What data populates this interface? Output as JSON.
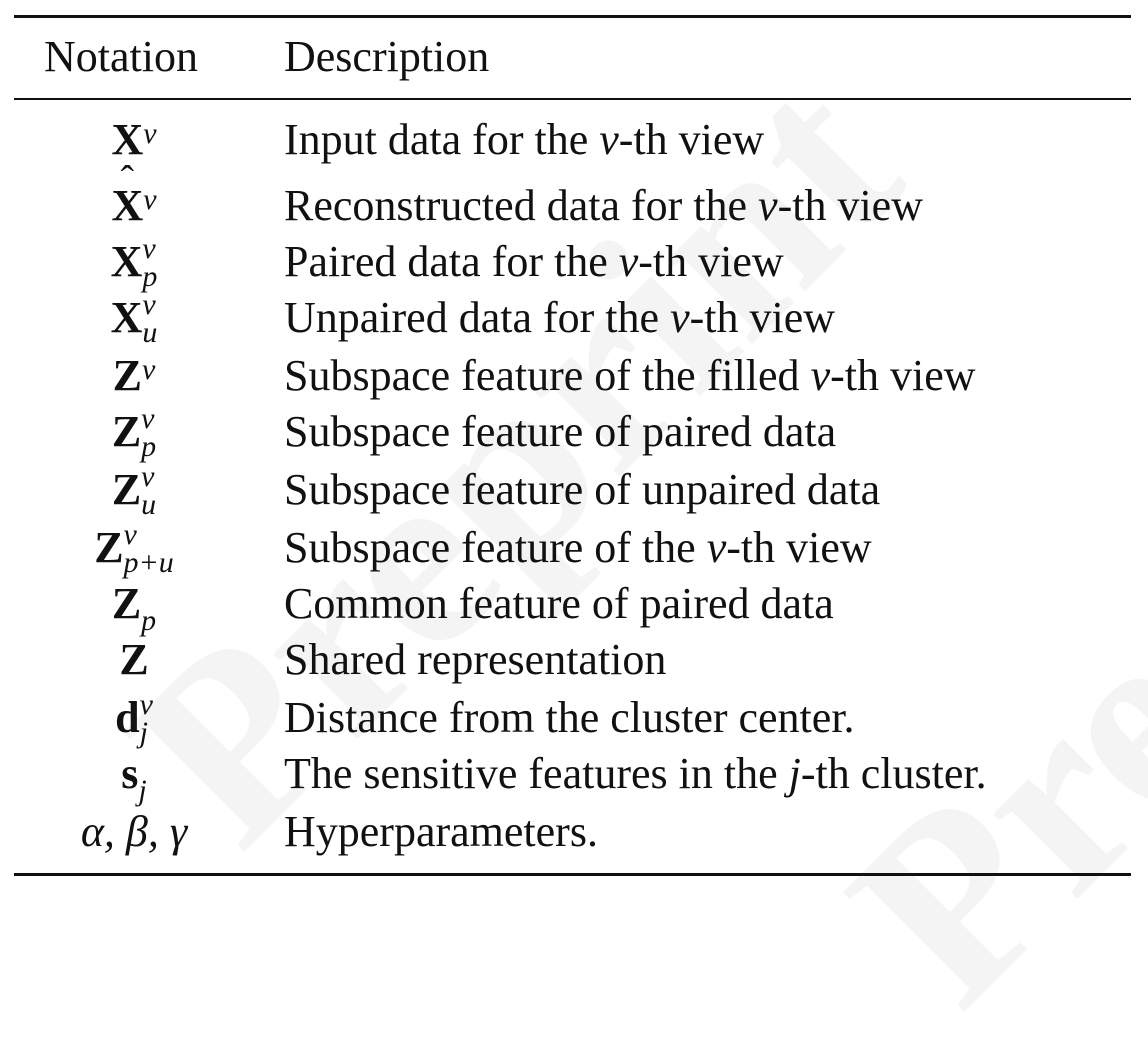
{
  "header": {
    "notation": "Notation",
    "description": "Description"
  },
  "rows": [
    {
      "base": "X",
      "sup": "v",
      "sub": "",
      "hat": false,
      "desc_pre": "Input data for the ",
      "desc_var": "v",
      "desc_post": "-th view"
    },
    {
      "base": "X",
      "sup": "v",
      "sub": "",
      "hat": true,
      "desc_pre": "Reconstructed data for the ",
      "desc_var": "v",
      "desc_post": "-th view"
    },
    {
      "base": "X",
      "sup": "v",
      "sub": "p",
      "hat": false,
      "desc_pre": "Paired data for the ",
      "desc_var": "v",
      "desc_post": "-th view"
    },
    {
      "base": "X",
      "sup": "v",
      "sub": "u",
      "hat": false,
      "desc_pre": "Unpaired data for the ",
      "desc_var": "v",
      "desc_post": "-th view"
    },
    {
      "base": "Z",
      "sup": "v",
      "sub": "",
      "hat": false,
      "desc_pre": "Subspace feature of the filled ",
      "desc_var": "v",
      "desc_post": "-th view"
    },
    {
      "base": "Z",
      "sup": "v",
      "sub": "p",
      "hat": false,
      "desc_pre": "Subspace feature of paired data",
      "desc_var": "",
      "desc_post": ""
    },
    {
      "base": "Z",
      "sup": "v",
      "sub": "u",
      "hat": false,
      "desc_pre": "Subspace feature of unpaired data",
      "desc_var": "",
      "desc_post": ""
    },
    {
      "base": "Z",
      "sup": "v",
      "sub": "p+u",
      "hat": false,
      "desc_pre": "Subspace feature of the ",
      "desc_var": "v",
      "desc_post": "-th view"
    },
    {
      "base": "Z",
      "sup": "",
      "sub": "p",
      "hat": false,
      "desc_pre": "Common feature of paired data",
      "desc_var": "",
      "desc_post": ""
    },
    {
      "base": "Z",
      "sup": "",
      "sub": "",
      "hat": false,
      "desc_pre": "Shared representation",
      "desc_var": "",
      "desc_post": ""
    },
    {
      "base": "d",
      "sup": "v",
      "sub": "j",
      "hat": false,
      "desc_pre": "Distance from the cluster center.",
      "desc_var": "",
      "desc_post": ""
    },
    {
      "base": "s",
      "sup": "",
      "sub": "j",
      "hat": false,
      "desc_pre": "The sensitive features in the ",
      "desc_var": "j",
      "desc_post": "-th cluster."
    },
    {
      "base": "α, β, γ",
      "sup": "",
      "sub": "",
      "hat": false,
      "italic_base": true,
      "desc_pre": "Hyperparameters.",
      "desc_var": "",
      "desc_post": ""
    }
  ],
  "watermark": "Preprint"
}
